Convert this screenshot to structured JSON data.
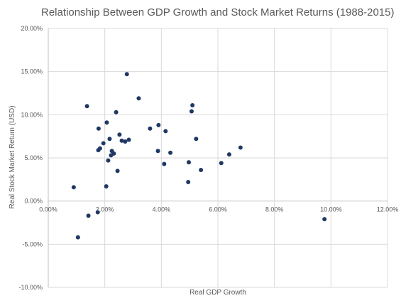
{
  "chart_data": {
    "type": "scatter",
    "title": "Relationship Between GDP Growth and Stock Market Returns (1988-2015)",
    "xlabel": "Real GDP Growth",
    "ylabel": "Real Stock Market Return (USD)",
    "xlim": [
      0,
      0.12
    ],
    "ylim": [
      -0.1,
      0.2
    ],
    "x_ticks": [
      0,
      0.02,
      0.04,
      0.06,
      0.08,
      0.1,
      0.12
    ],
    "x_tick_labels": [
      "0.00%",
      "2.00%",
      "4.00%",
      "6.00%",
      "8.00%",
      "10.00%",
      "12.00%"
    ],
    "y_ticks": [
      -0.1,
      -0.05,
      0,
      0.05,
      0.1,
      0.15,
      0.2
    ],
    "y_tick_labels": [
      "-10.00%",
      "-5.00%",
      "0.00%",
      "5.00%",
      "10.00%",
      "15.00%",
      "20.00%"
    ],
    "grid": true,
    "legend": "none",
    "marker_color": "#1f3864",
    "series": [
      {
        "points": [
          [
            0.009,
            0.016
          ],
          [
            0.0105,
            -0.042
          ],
          [
            0.0137,
            0.11
          ],
          [
            0.0142,
            -0.017
          ],
          [
            0.0175,
            -0.013
          ],
          [
            0.0177,
            0.059
          ],
          [
            0.0178,
            0.084
          ],
          [
            0.0183,
            0.061
          ],
          [
            0.0195,
            0.067
          ],
          [
            0.0205,
            0.017
          ],
          [
            0.0207,
            0.091
          ],
          [
            0.0212,
            0.047
          ],
          [
            0.0217,
            0.072
          ],
          [
            0.0222,
            0.053
          ],
          [
            0.0225,
            0.058
          ],
          [
            0.0232,
            0.055
          ],
          [
            0.024,
            0.103
          ],
          [
            0.0245,
            0.035
          ],
          [
            0.0252,
            0.077
          ],
          [
            0.026,
            0.07
          ],
          [
            0.0272,
            0.069
          ],
          [
            0.0278,
            0.147
          ],
          [
            0.0285,
            0.071
          ],
          [
            0.032,
            0.119
          ],
          [
            0.036,
            0.084
          ],
          [
            0.0388,
            0.058
          ],
          [
            0.039,
            0.088
          ],
          [
            0.041,
            0.043
          ],
          [
            0.0415,
            0.081
          ],
          [
            0.0432,
            0.056
          ],
          [
            0.0495,
            0.022
          ],
          [
            0.0497,
            0.045
          ],
          [
            0.0507,
            0.104
          ],
          [
            0.051,
            0.111
          ],
          [
            0.0523,
            0.072
          ],
          [
            0.054,
            0.036
          ],
          [
            0.0612,
            0.044
          ],
          [
            0.064,
            0.054
          ],
          [
            0.068,
            0.062
          ],
          [
            0.0977,
            -0.021
          ]
        ]
      }
    ]
  }
}
